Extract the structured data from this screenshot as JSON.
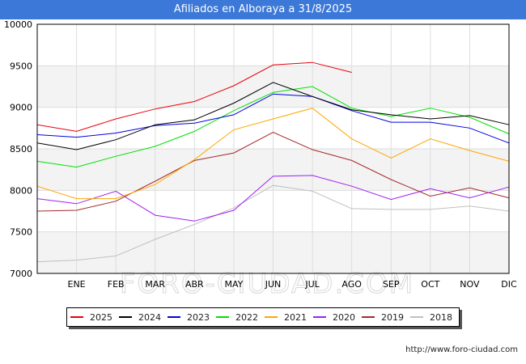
{
  "header": {
    "title": "Afiliados en Alboraya a 31/8/2025"
  },
  "footer": {
    "url": "http://www.foro-ciudad.com"
  },
  "watermark": "FORO-CIUDAD.COM",
  "chart_data": {
    "type": "line",
    "title": "Afiliados en Alboraya a 31/8/2025",
    "xlabel": "",
    "ylabel": "",
    "x": [
      "",
      "ENE",
      "FEB",
      "MAR",
      "ABR",
      "MAY",
      "JUN",
      "JUL",
      "AGO",
      "SEP",
      "OCT",
      "NOV",
      "DIC"
    ],
    "ylim": [
      7000,
      10000
    ],
    "yticks": [
      7000,
      7500,
      8000,
      8500,
      9000,
      9500,
      10000
    ],
    "grid": true,
    "legend_position": "bottom",
    "series": [
      {
        "name": "2025",
        "color": "#e8000b",
        "values": [
          8790,
          8710,
          8860,
          8980,
          9070,
          9260,
          9510,
          9540,
          9420,
          null,
          null,
          null,
          null
        ]
      },
      {
        "name": "2024",
        "color": "#000000",
        "values": [
          8570,
          8490,
          8610,
          8790,
          8850,
          9050,
          9300,
          9130,
          8970,
          8910,
          8860,
          8900,
          8790
        ]
      },
      {
        "name": "2023",
        "color": "#0000e0",
        "values": [
          8670,
          8640,
          8690,
          8780,
          8810,
          8910,
          9160,
          9130,
          8960,
          8820,
          8820,
          8750,
          8570
        ]
      },
      {
        "name": "2022",
        "color": "#00e000",
        "values": [
          8350,
          8280,
          8410,
          8530,
          8710,
          8960,
          9180,
          9250,
          8990,
          8890,
          8990,
          8880,
          8680
        ]
      },
      {
        "name": "2021",
        "color": "#ffa500",
        "values": [
          8050,
          7900,
          7900,
          8070,
          8370,
          8730,
          8860,
          8990,
          8620,
          8390,
          8620,
          8480,
          8350
        ]
      },
      {
        "name": "2020",
        "color": "#a020f0",
        "values": [
          7900,
          7840,
          7990,
          7700,
          7630,
          7760,
          8170,
          8180,
          8050,
          7890,
          8020,
          7910,
          8040
        ]
      },
      {
        "name": "2019",
        "color": "#a52a2a",
        "values": [
          7750,
          7760,
          7870,
          8110,
          8360,
          8450,
          8700,
          8490,
          8360,
          8130,
          7930,
          8030,
          7910
        ]
      },
      {
        "name": "2018",
        "color": "#c0c0c0",
        "values": [
          7140,
          7160,
          7210,
          7410,
          7590,
          7790,
          8060,
          7990,
          7780,
          7770,
          7770,
          7810,
          7750
        ]
      }
    ]
  }
}
